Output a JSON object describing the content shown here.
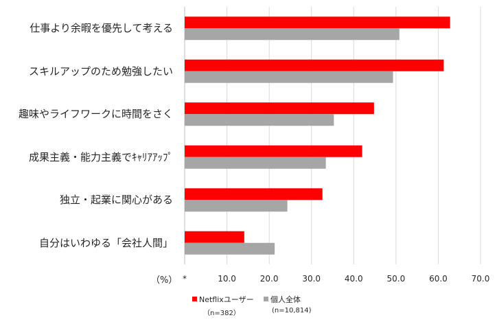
{
  "chart_data": {
    "type": "bar",
    "orientation": "horizontal",
    "categories": [
      "仕事より余暇を優先して考える",
      "スキルアップのため勉強したい",
      "趣味やライフワークに時間をさく",
      "成果主義・能力主義でｷｬﾘｱｱｯﾌﾟ",
      "独立・起業に関心がある",
      "自分はいわゆる「会社人間」"
    ],
    "series": [
      {
        "name": "Netflixユーザー",
        "n_label": "（n=382）",
        "color": "#ff0000",
        "values": [
          62.8,
          61.3,
          44.8,
          42.0,
          32.6,
          14.1
        ]
      },
      {
        "name": "個人全体",
        "n_label": "(n=10,814)",
        "color": "#a6a6a6",
        "values": [
          50.8,
          49.3,
          35.3,
          33.4,
          24.3,
          21.3
        ]
      }
    ],
    "xlim": [
      0,
      70
    ],
    "x_ticks": [
      "*",
      "10.0",
      "20.0",
      "30.0",
      "40.0",
      "50.0",
      "60.0",
      "70.0"
    ],
    "unit_label": "（%）",
    "legend_position": "bottom",
    "grid": true
  }
}
